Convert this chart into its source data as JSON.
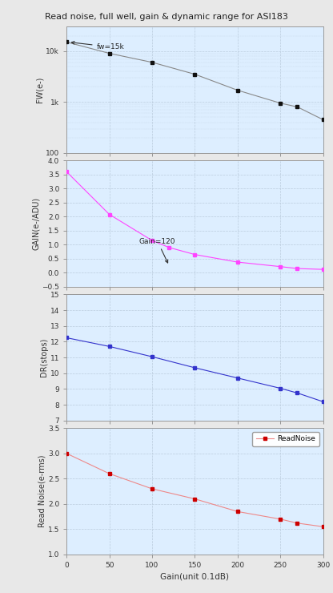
{
  "title": "Read noise, full well, gain & dynamic range for ASI183",
  "xlabel": "Gain(unit 0.1dB)",
  "fw_x": [
    0,
    50,
    100,
    150,
    200,
    250,
    270,
    300
  ],
  "fw_y": [
    15000,
    9000,
    6000,
    3500,
    1700,
    950,
    800,
    450
  ],
  "fw_ylim": [
    100,
    30000
  ],
  "fw_yticks": [
    100,
    1000,
    10000
  ],
  "fw_ylabel": "FW(e-)",
  "fw_annotation": "fw=15k",
  "gain_x": [
    0,
    50,
    100,
    120,
    150,
    200,
    250,
    270,
    300
  ],
  "gain_y": [
    3.6,
    2.08,
    1.15,
    0.9,
    0.65,
    0.38,
    0.22,
    0.15,
    0.12
  ],
  "gain_ylim": [
    -0.5,
    4.0
  ],
  "gain_yticks": [
    -0.5,
    0.0,
    0.5,
    1.0,
    1.5,
    2.0,
    2.5,
    3.0,
    3.5,
    4.0
  ],
  "gain_ylabel": "GAIN(e-/ADU)",
  "gain_color": "#FF44FF",
  "gain_annotation_text": "Gain=120",
  "dr_x": [
    0,
    50,
    100,
    150,
    200,
    250,
    270,
    300
  ],
  "dr_y": [
    12.25,
    11.7,
    11.05,
    10.35,
    9.7,
    9.05,
    8.75,
    8.2
  ],
  "dr_ylim": [
    7,
    15
  ],
  "dr_yticks": [
    7,
    8,
    9,
    10,
    11,
    12,
    13,
    14,
    15
  ],
  "dr_ylabel": "DR(stops)",
  "dr_color": "#3333CC",
  "rn_x": [
    0,
    50,
    100,
    150,
    200,
    250,
    270,
    300
  ],
  "rn_y": [
    3.0,
    2.6,
    2.3,
    2.1,
    1.85,
    1.7,
    1.62,
    1.55
  ],
  "rn_ylim": [
    1.0,
    3.5
  ],
  "rn_yticks": [
    1.0,
    1.5,
    2.0,
    2.5,
    3.0,
    3.5
  ],
  "rn_ylabel": "Read Noise(e-rms)",
  "rn_color": "#EE8888",
  "rn_marker_color": "#CC0000",
  "rn_legend": "ReadNoise",
  "xlim": [
    0,
    300
  ],
  "xticks": [
    0,
    50,
    100,
    150,
    200,
    250,
    300
  ],
  "bg_color": "#DDEEFF",
  "grid_color": "#BBCCDD",
  "spine_color": "#999999",
  "fig_bg": "#E8E8E8"
}
